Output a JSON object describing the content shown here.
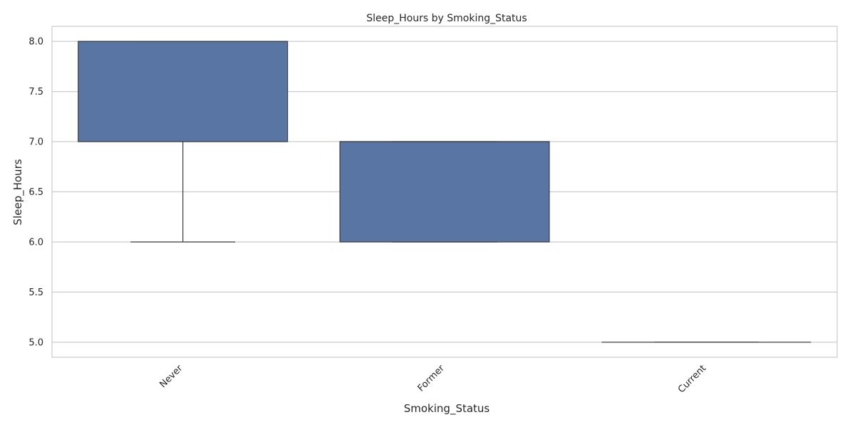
{
  "chart_data": {
    "type": "box",
    "title": "Sleep_Hours by Smoking_Status",
    "xlabel": "Smoking_Status",
    "ylabel": "Sleep_Hours",
    "ylim": [
      4.85,
      8.15
    ],
    "yticks": [
      "5.0",
      "5.5",
      "6.0",
      "6.5",
      "7.0",
      "7.5",
      "8.0"
    ],
    "grid": true,
    "categories": [
      "Never",
      "Former",
      "Current"
    ],
    "boxes": [
      {
        "category": "Never",
        "whisker_low": 6.0,
        "q1": 7.0,
        "median": 8.0,
        "q3": 8.0,
        "whisker_high": 8.0
      },
      {
        "category": "Former",
        "whisker_low": 6.0,
        "q1": 6.0,
        "median": 7.0,
        "q3": 7.0,
        "whisker_high": 7.0
      },
      {
        "category": "Current",
        "whisker_low": 5.0,
        "q1": 5.0,
        "median": 5.0,
        "q3": 5.0,
        "whisker_high": 5.0
      }
    ],
    "box_color": "#5875a4",
    "edge_color": "#404040",
    "grid_color": "#cccccc",
    "frame_color": "#cccccc"
  }
}
